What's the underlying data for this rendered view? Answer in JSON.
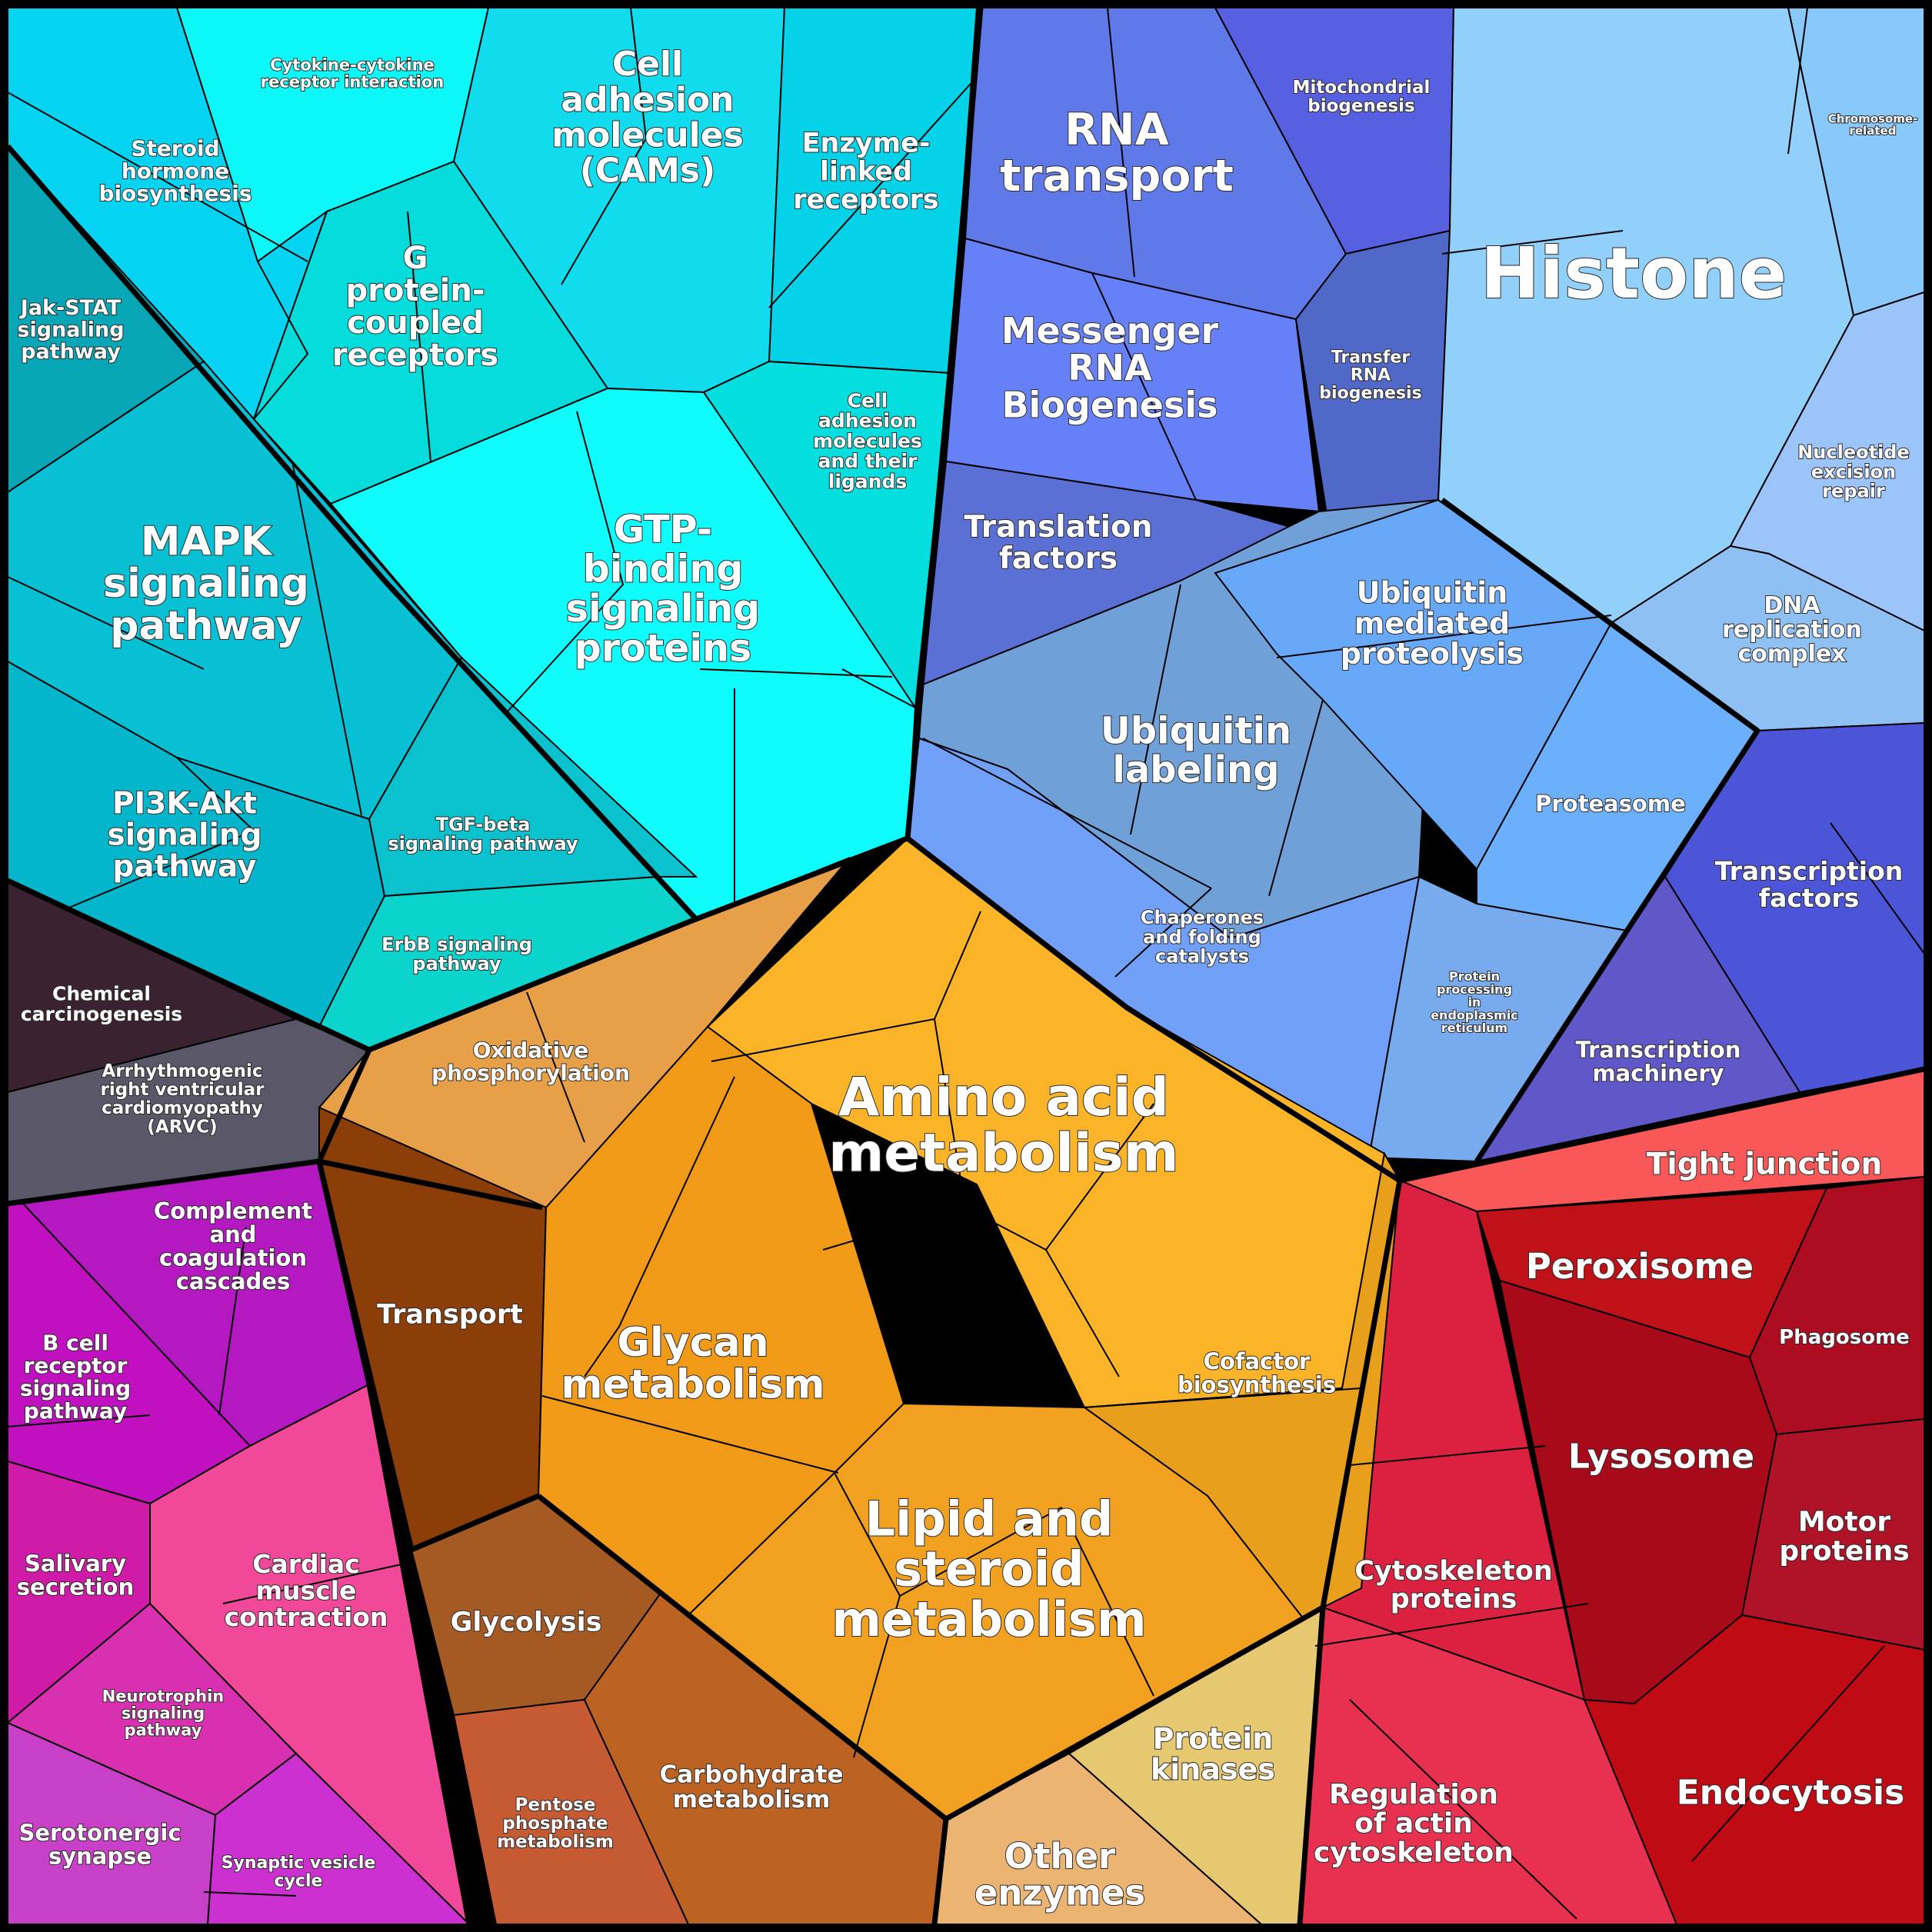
{
  "diagram": {
    "type": "voronoi-treemap",
    "groups": [
      {
        "name": "signaling",
        "color": "#08d8ea",
        "cells": [
          {
            "id": "cytokine",
            "label": "Cytokine-cytokine receptor interaction",
            "color": "#0cf8f8"
          },
          {
            "id": "steroid-hormone",
            "label": "Steroid hormone biosynthesis",
            "color": "#04d4f2"
          },
          {
            "id": "cams",
            "label": "Cell adhesion molecules (CAMs)",
            "color": "#10dced"
          },
          {
            "id": "enzyme-linked",
            "label": "Enzyme-linked receptors",
            "color": "#04d2e8"
          },
          {
            "id": "gpcr",
            "label": "G protein-coupled receptors",
            "color": "#04dcdc"
          },
          {
            "id": "jak-stat",
            "label": "Jak-STAT signaling pathway",
            "color": "#06a6b6"
          },
          {
            "id": "mapk",
            "label": "MAPK signaling pathway",
            "color": "#08c0d4"
          },
          {
            "id": "gtp",
            "label": "GTP-binding signaling proteins",
            "color": "#0efcfc"
          },
          {
            "id": "cell-adhesion-ligands",
            "label": "Cell adhesion molecules and their ligands",
            "color": "#04dede"
          },
          {
            "id": "pi3k",
            "label": "PI3K-Akt signaling pathway",
            "color": "#04b6cc"
          },
          {
            "id": "tgf",
            "label": "TGF-beta signaling pathway",
            "color": "#0ac2ce"
          },
          {
            "id": "erbb",
            "label": "ErbB signaling pathway",
            "color": "#0ad4cc"
          }
        ]
      },
      {
        "name": "disease-dark",
        "color": "#3b2230",
        "cells": [
          {
            "id": "chem-carc",
            "label": "Chemical carcinogenesis",
            "color": "#3b2230"
          },
          {
            "id": "arvc",
            "label": "Arrhythmogenic right ventricular cardiomyopathy (ARVC)",
            "color": "#5a5868"
          }
        ]
      },
      {
        "name": "genetic-information",
        "color": "#6080e8",
        "cells": [
          {
            "id": "rna-transport",
            "label": "RNA transport",
            "color": "#6079e8"
          },
          {
            "id": "mito",
            "label": "Mitochondrial biogenesis",
            "color": "#5660e0"
          },
          {
            "id": "mrna",
            "label": "Messenger RNA Biogenesis",
            "color": "#6680f8"
          },
          {
            "id": "trna",
            "label": "Transfer RNA biogenesis",
            "color": "#5068c8"
          },
          {
            "id": "translation",
            "label": "Translation factors",
            "color": "#5a70d4"
          },
          {
            "id": "ubiq-med",
            "label": "Ubiquitin mediated proteolysis",
            "color": "#70a0d8"
          },
          {
            "id": "ubiq-lab",
            "label": "Ubiquitin labeling",
            "color": "#68a8f8"
          },
          {
            "id": "proteasome",
            "label": "Proteasome",
            "color": "#6cb0fc"
          },
          {
            "id": "chaperones",
            "label": "Chaperones and folding catalysts",
            "color": "#70a0f8"
          },
          {
            "id": "protein-proc",
            "label": "Protein processing in endoplasmic reticulum",
            "color": "#78aaee"
          },
          {
            "id": "histone",
            "label": "Histone",
            "color": "#92d0fc"
          },
          {
            "id": "chromosome",
            "label": "Chromosome-related",
            "color": "#88c8fa"
          },
          {
            "id": "ner",
            "label": "Nucleotide excision repair",
            "color": "#9ac4fa"
          },
          {
            "id": "dna-rep",
            "label": "DNA replication complex",
            "color": "#8ec0f4"
          },
          {
            "id": "tf",
            "label": "Transcription factors",
            "color": "#4c54d8"
          },
          {
            "id": "tm",
            "label": "Transcription machinery",
            "color": "#6058c8"
          }
        ]
      },
      {
        "name": "organismal",
        "color": "#c818c8",
        "cells": [
          {
            "id": "complement",
            "label": "Complement and coagulation cascades",
            "color": "#b418c0"
          },
          {
            "id": "bcell",
            "label": "B cell receptor signaling pathway",
            "color": "#c010c0"
          },
          {
            "id": "salivary",
            "label": "Salivary secretion",
            "color": "#d01aa8"
          },
          {
            "id": "cardiac",
            "label": "Cardiac muscle contraction",
            "color": "#f2489a"
          },
          {
            "id": "neurotrophin",
            "label": "Neurotrophin signaling pathway",
            "color": "#d830b0"
          },
          {
            "id": "serotonergic",
            "label": "Serotonergic synapse",
            "color": "#c840c8"
          },
          {
            "id": "synaptic",
            "label": "Synaptic vesicle cycle",
            "color": "#cc30d0"
          }
        ]
      },
      {
        "name": "metabolism",
        "color": "#fbb020",
        "cells": [
          {
            "id": "oxphos",
            "label": "Oxidative phosphorylation",
            "color": "#e8a048"
          },
          {
            "id": "amino",
            "label": "Amino acid metabolism",
            "color": "#fbb428"
          },
          {
            "id": "transport",
            "label": "Transport",
            "color": "#8c3e08"
          },
          {
            "id": "glycan",
            "label": "Glycan metabolism",
            "color": "#f09a18"
          },
          {
            "id": "cofactor",
            "label": "Cofactor biosynthesis",
            "color": "#e8a01c"
          },
          {
            "id": "lipid",
            "label": "Lipid and steroid metabolism",
            "color": "#f2a020"
          },
          {
            "id": "glycolysis",
            "label": "Glycolysis",
            "color": "#a45a22"
          },
          {
            "id": "pentose",
            "label": "Pentose phosphate metabolism",
            "color": "#c65a32"
          },
          {
            "id": "carbo",
            "label": "Carbohydrate metabolism",
            "color": "#bc6222"
          },
          {
            "id": "other-enz",
            "label": "Other enzymes",
            "color": "#ecb472"
          },
          {
            "id": "protein-kinases",
            "label": "Protein kinases",
            "color": "#e6c870"
          }
        ]
      },
      {
        "name": "cellular-processes",
        "color": "#d01020",
        "cells": [
          {
            "id": "tight",
            "label": "Tight junction",
            "color": "#fa5858"
          },
          {
            "id": "peroxisome",
            "label": "Peroxisome",
            "color": "#c01018"
          },
          {
            "id": "phagosome",
            "label": "Phagosome",
            "color": "#ae0c20"
          },
          {
            "id": "lysosome",
            "label": "Lysosome",
            "color": "#a80a1a"
          },
          {
            "id": "motor",
            "label": "Motor proteins",
            "color": "#b01228"
          },
          {
            "id": "cytoskeleton",
            "label": "Cytoskeleton proteins",
            "color": "#dc2040"
          },
          {
            "id": "regulation-actin",
            "label": "Regulation of actin cytoskeleton",
            "color": "#e83050"
          },
          {
            "id": "endocytosis",
            "label": "Endocytosis",
            "color": "#c00a14"
          }
        ]
      }
    ]
  }
}
